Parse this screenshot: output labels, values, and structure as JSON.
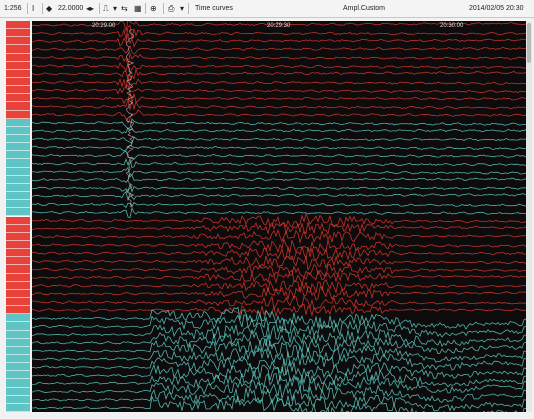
{
  "toolbar": {
    "scale_label": "1:256",
    "gain_value": "22.0000",
    "mode_label": "Time curves",
    "montage_label": "Ampl.Custom",
    "datetime_label": "2014/02/05 20:30"
  },
  "timeline": {
    "labels": [
      "20:29:00",
      "20:29:30",
      "20:30:00"
    ]
  },
  "groups": [
    {
      "name": "group-1",
      "color": "#e8433a",
      "trace_color": "#d6352f",
      "channels": 12
    },
    {
      "name": "group-2",
      "color": "#5ec4c4",
      "trace_color": "#5ac3bc",
      "channels": 12
    },
    {
      "name": "group-3",
      "color": "#e8433a",
      "trace_color": "#d6352f",
      "channels": 12
    },
    {
      "name": "group-4",
      "color": "#5ec4c4",
      "trace_color": "#5ac3bc",
      "channels": 12
    }
  ],
  "colors": {
    "background": "#0d0b0b",
    "red": "#d6352f",
    "cyan": "#5ac3bc"
  }
}
